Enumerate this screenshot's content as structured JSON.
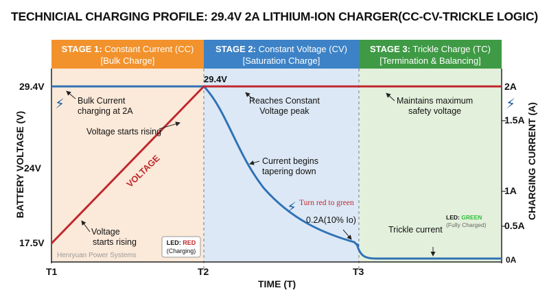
{
  "title": "TECHNICIAL CHARGING PROFILE: 29.4V 2A LITHIUM-ION CHARGER(CC-CV-TRICKLE LOGIC)",
  "colors": {
    "stage1": "#f2922c",
    "stage2": "#3d82c6",
    "stage3": "#3f9a45",
    "voltage": "#c0282e",
    "current": "#2f72b6"
  },
  "stages": [
    {
      "label": "STAGE 1:",
      "name": "Constant Current (CC)",
      "sub": "[Bulk Charge]"
    },
    {
      "label": "STAGE 2:",
      "name": "Constant Voltage (CV)",
      "sub": "[Saturation Charge]"
    },
    {
      "label": "STAGE 3:",
      "name": "Trickle Charge (TC)",
      "sub": "[Termination & Balancing]"
    }
  ],
  "left_ticks": [
    "29.4V",
    "24V",
    "17.5V"
  ],
  "right_ticks": [
    "2A",
    "1.5A",
    "1A",
    "0.5A",
    "0A"
  ],
  "x_ticks": [
    "T1",
    "T2",
    "T3"
  ],
  "y_left_label": "BATTERY VOLTAGE (V)",
  "y_right_label": "CHARGING CURRENT (A)",
  "x_label": "TIME (T)",
  "annotations": {
    "peak_label": "29.4V",
    "bulk_current": [
      "Bulk Current",
      "charging at 2A"
    ],
    "voltage_rising_top": "Voltage starts rising",
    "voltage_word": "VOLTAGE",
    "voltage_rising_bottom": [
      "Voltage",
      "starts rising"
    ],
    "led_red_prefix": "LED:",
    "led_red_color": "RED",
    "led_red_state": "(Charging)",
    "watermark": "Henryuan Power Systems",
    "reaches": [
      "Reaches Constant",
      "Voltage peak"
    ],
    "current_tapering": [
      "Current begins",
      "tapering down"
    ],
    "turn_red": "Turn red to green",
    "threshold": "0.2A(10% Io)",
    "maintains": [
      "Maintains maximum",
      "safety voltage"
    ],
    "led_green_prefix": "LED:",
    "led_green_color": "GREEN",
    "led_green_state": "(Fully Charged)",
    "trickle": "Trickle current"
  }
}
